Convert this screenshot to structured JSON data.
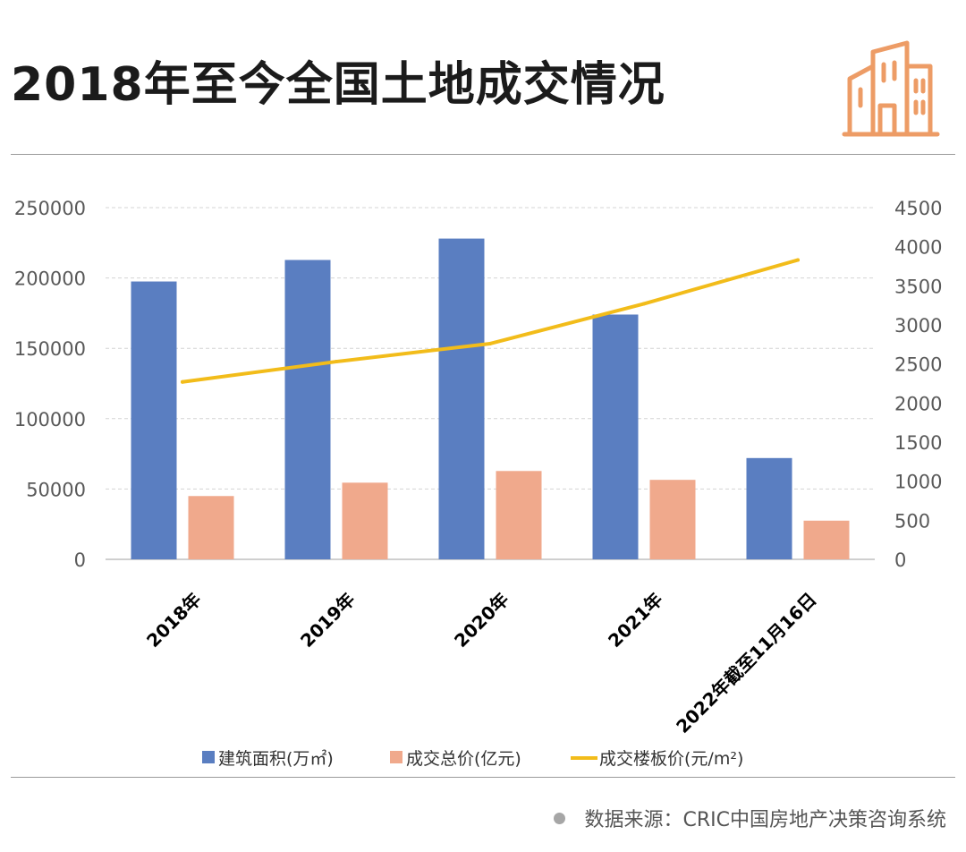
{
  "header": {
    "title": "2018年至今全国土地成交情况",
    "logo_icon": "buildings-icon",
    "logo_color": "#ED9C66"
  },
  "source": {
    "text": "数据来源：CRIC中国房地产决策咨询系统"
  },
  "chart_data": {
    "type": "bar",
    "categories": [
      "2018年",
      "2019年",
      "2020年",
      "2021年",
      "2022年截至11月16日"
    ],
    "series": [
      {
        "name": "建筑面积(万㎡)",
        "type": "bar",
        "axis": "left",
        "color": "#5A7EC1",
        "values": [
          197500,
          212800,
          228000,
          174000,
          72000
        ]
      },
      {
        "name": "成交总价(亿元)",
        "type": "bar",
        "axis": "left",
        "color": "#F0A98C",
        "values": [
          45000,
          54500,
          62800,
          56500,
          27500
        ]
      },
      {
        "name": "成交楼板价(元/m²)",
        "type": "line",
        "axis": "right",
        "color": "#F2BC1A",
        "values": [
          2270,
          2530,
          2760,
          3270,
          3830
        ]
      }
    ],
    "y_left": {
      "min": 0,
      "max": 250000,
      "ticks": [
        0,
        50000,
        100000,
        150000,
        200000,
        250000
      ]
    },
    "y_right": {
      "min": 0,
      "max": 4500,
      "ticks": [
        0,
        500,
        1000,
        1500,
        2000,
        2500,
        3000,
        3500,
        4000,
        4500
      ]
    },
    "grid": true,
    "legend_position": "bottom"
  }
}
